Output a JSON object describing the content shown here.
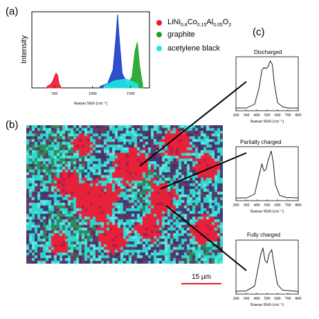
{
  "panel_labels": {
    "a": "(a)",
    "b": "(b)",
    "c": "(c)"
  },
  "legend": [
    {
      "label_base": "LiNi",
      "sub1": "0.8",
      "mid1": "Co",
      "sub2": "0.15",
      "mid2": "Al",
      "sub3": "0.05",
      "mid3": "O",
      "sub4": "2",
      "color": "#e8192c"
    },
    {
      "label": "graphite",
      "color": "#1aa328"
    },
    {
      "label": "acetylene black",
      "color": "#1ee6e0"
    }
  ],
  "scale_bar": {
    "label": "15 μm",
    "color": "#e8192c"
  },
  "chart_data": [
    {
      "type": "line",
      "panel": "a",
      "ylabel": "Intensity",
      "xlabel": "Raman Shift (cm⁻¹)",
      "xticks": [
        500,
        1000,
        1500
      ],
      "xlim": [
        200,
        1750
      ],
      "series": [
        {
          "color": "#e8192c",
          "x": [
            400,
            450,
            480,
            500,
            520,
            540,
            560,
            580
          ],
          "y": [
            0.02,
            0.05,
            0.1,
            0.16,
            0.2,
            0.17,
            0.05,
            0.02
          ]
        },
        {
          "color": "#1a3cc8",
          "x": [
            1100,
            1200,
            1270,
            1310,
            1330,
            1350,
            1390,
            1450,
            1500
          ],
          "y": [
            0.02,
            0.06,
            0.25,
            0.7,
            1.0,
            0.7,
            0.2,
            0.07,
            0.04
          ]
        },
        {
          "color": "#1aa328",
          "x": [
            1450,
            1520,
            1560,
            1590,
            1620,
            1660
          ],
          "y": [
            0.04,
            0.15,
            0.5,
            0.62,
            0.3,
            0.04
          ]
        },
        {
          "color": "#1ee6e0",
          "x": [
            1150,
            1300,
            1450,
            1600
          ],
          "y": [
            0.03,
            0.1,
            0.12,
            0.05
          ]
        }
      ]
    },
    {
      "type": "line",
      "panel": "c-1",
      "title": "Discharged",
      "xlabel": "Raman Shift (cm⁻¹)",
      "xticks": [
        200,
        300,
        400,
        500,
        600,
        700,
        800
      ],
      "x": [
        200,
        300,
        380,
        420,
        450,
        470,
        490,
        510,
        530,
        550,
        570,
        600,
        650,
        700,
        800
      ],
      "y": [
        0.05,
        0.05,
        0.12,
        0.4,
        0.75,
        0.8,
        0.78,
        0.82,
        0.92,
        0.86,
        0.5,
        0.15,
        0.07,
        0.05,
        0.05
      ]
    },
    {
      "type": "line",
      "panel": "c-2",
      "title": "Partially charged",
      "xlabel": "Raman Shift (cm⁻¹)",
      "xticks": [
        200,
        300,
        400,
        500,
        600,
        700,
        800
      ],
      "x": [
        200,
        300,
        380,
        420,
        450,
        470,
        490,
        510,
        540,
        560,
        580,
        620,
        680,
        800
      ],
      "y": [
        0.05,
        0.05,
        0.12,
        0.45,
        0.68,
        0.55,
        0.58,
        0.75,
        0.92,
        0.7,
        0.3,
        0.1,
        0.06,
        0.05
      ]
    },
    {
      "type": "line",
      "panel": "c-3",
      "title": "Fully charged",
      "xlabel": "Raman Shift (cm⁻¹)",
      "xticks": [
        200,
        300,
        400,
        500,
        600,
        700,
        800
      ],
      "x": [
        200,
        300,
        380,
        420,
        440,
        460,
        480,
        500,
        520,
        545,
        570,
        600,
        650,
        800
      ],
      "y": [
        0.05,
        0.06,
        0.15,
        0.55,
        0.75,
        0.85,
        0.62,
        0.58,
        0.75,
        0.82,
        0.5,
        0.18,
        0.07,
        0.05
      ]
    }
  ]
}
